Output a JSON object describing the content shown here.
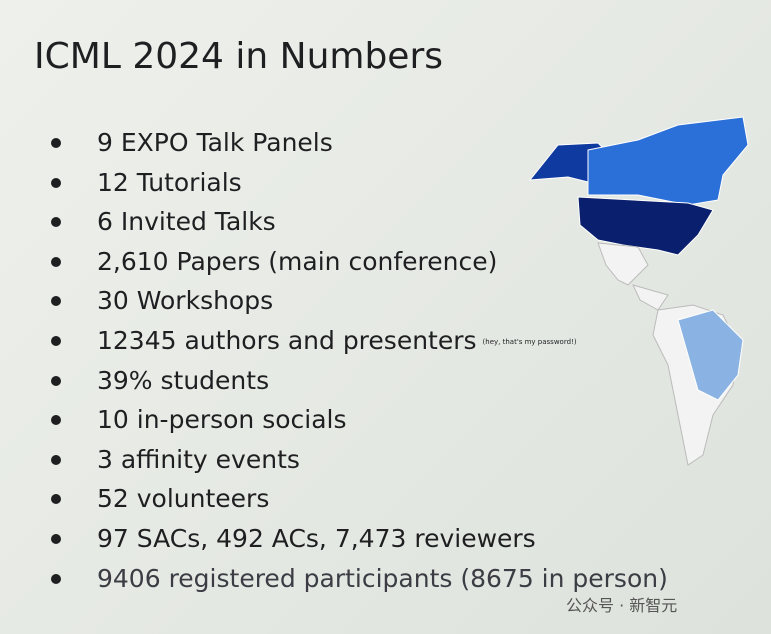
{
  "slide": {
    "title": "ICML 2024 in Numbers",
    "bullets": [
      {
        "text": "9 EXPO Talk Panels"
      },
      {
        "text": "12 Tutorials"
      },
      {
        "text": "6 Invited Talks"
      },
      {
        "text": "2,610 Papers (main conference)"
      },
      {
        "text": "30 Workshops"
      },
      {
        "text": "12345 authors and presenters",
        "note": "(hey, that's my password!)"
      },
      {
        "text": "39% students"
      },
      {
        "text": "10 in-person socials"
      },
      {
        "text": "3 affinity events"
      },
      {
        "text": "52 volunteers"
      },
      {
        "text": "97 SACs, 492 ACs, 7,473 reviewers"
      },
      {
        "text": "9406 registered participants (8675 in person)"
      }
    ]
  },
  "watermark": "公众号 · 新智元"
}
